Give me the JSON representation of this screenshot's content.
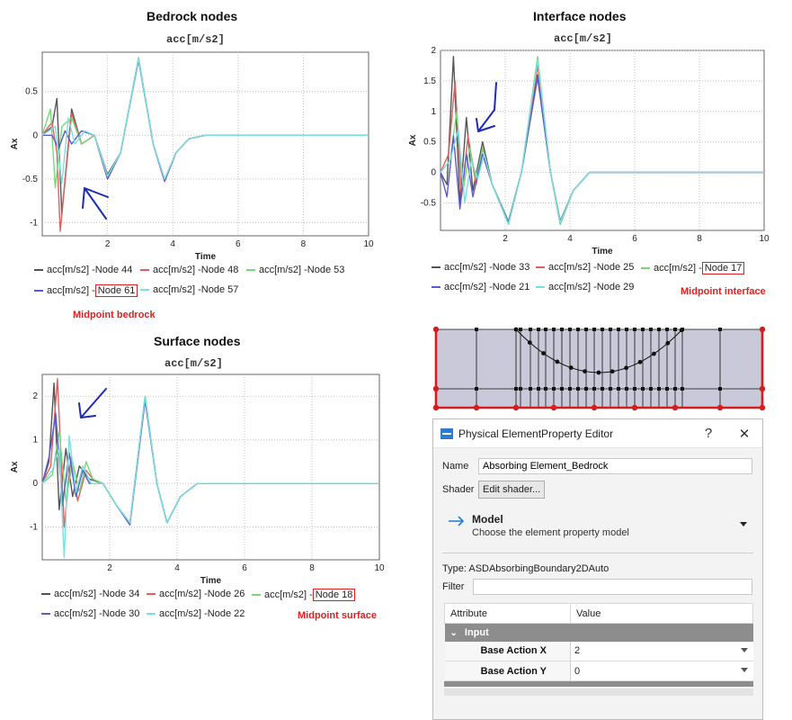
{
  "panels": {
    "bedrock": {
      "heading": "Bedrock nodes",
      "chart_title": "acc[m/s2]",
      "ylabel": "Ax",
      "xlabel": "Time",
      "xticks": [
        "2",
        "4",
        "6",
        "8",
        "10"
      ],
      "yticks": [
        "0.5",
        "0",
        "-0.5",
        "-1"
      ],
      "legend": [
        {
          "prefix": "acc[m/s2] - ",
          "node": "Node 44",
          "color": "#555555"
        },
        {
          "prefix": "acc[m/s2] - ",
          "node": "Node 48",
          "color": "#e06060"
        },
        {
          "prefix": "acc[m/s2] - ",
          "node": "Node 53",
          "color": "#7ad77a"
        },
        {
          "prefix": "acc[m/s2] - ",
          "node": "Node 61",
          "color": "#5b5bd0"
        },
        {
          "prefix": "acc[m/s2] - ",
          "node": "Node 57",
          "color": "#7be0e0"
        }
      ],
      "note": "Midpoint bedrock"
    },
    "interface": {
      "heading": "Interface nodes",
      "chart_title": "acc[m/s2]",
      "ylabel": "Ax",
      "xlabel": "Time",
      "xticks": [
        "2",
        "4",
        "6",
        "8",
        "10"
      ],
      "yticks": [
        "2",
        "1.5",
        "1",
        "0.5",
        "0",
        "-0.5"
      ],
      "legend": [
        {
          "prefix": "acc[m/s2] - ",
          "node": "Node 33",
          "color": "#555555"
        },
        {
          "prefix": "acc[m/s2] - ",
          "node": "Node 25",
          "color": "#e06060"
        },
        {
          "prefix": "acc[m/s2] - ",
          "node": "Node 17",
          "color": "#7ad77a"
        },
        {
          "prefix": "acc[m/s2] - ",
          "node": "Node 21",
          "color": "#5b5bd0"
        },
        {
          "prefix": "acc[m/s2] - ",
          "node": "Node 29",
          "color": "#7be0e0"
        }
      ],
      "note": "Midpoint interface"
    },
    "surface": {
      "heading": "Surface nodes",
      "chart_title": "acc[m/s2]",
      "ylabel": "Ax",
      "xlabel": "Time",
      "xticks": [
        "2",
        "4",
        "6",
        "8",
        "10"
      ],
      "yticks": [
        "2",
        "1",
        "0",
        "-1"
      ],
      "legend": [
        {
          "prefix": "acc[m/s2] - ",
          "node": "Node 34",
          "color": "#555555"
        },
        {
          "prefix": "acc[m/s2] - ",
          "node": "Node 26",
          "color": "#e06060"
        },
        {
          "prefix": "acc[m/s2] - ",
          "node": "Node 18",
          "color": "#7ad77a"
        },
        {
          "prefix": "acc[m/s2] - ",
          "node": "Node 30",
          "color": "#5b5bd0"
        },
        {
          "prefix": "acc[m/s2] - ",
          "node": "Node 22",
          "color": "#7be0e0"
        }
      ],
      "note": "Midpoint surface"
    }
  },
  "chart_data": [
    {
      "type": "line",
      "title": "acc[m/s2]",
      "xlabel": "Time",
      "ylabel": "Ax",
      "xlim": [
        0,
        10
      ],
      "ylim": [
        -1.15,
        0.95
      ],
      "grid": true,
      "legend_position": "below",
      "series": [
        {
          "name": "acc[m/s2] - Node 44",
          "x": [
            0,
            0.3,
            0.45,
            0.6,
            0.9,
            1.2,
            1.6,
            2.0,
            2.4,
            2.95,
            3.4,
            3.75,
            4.1,
            4.5,
            5.0,
            6,
            10
          ],
          "y": [
            0,
            0.1,
            0.42,
            -0.9,
            0.3,
            -0.1,
            0,
            -0.45,
            -0.2,
            0.88,
            -0.1,
            -0.52,
            -0.2,
            -0.04,
            0,
            0,
            0
          ]
        },
        {
          "name": "acc[m/s2] - Node 48",
          "x": [
            0,
            0.3,
            0.45,
            0.55,
            0.9,
            1.2,
            1.6,
            2.0,
            2.4,
            2.95,
            3.4,
            3.75,
            4.1,
            4.5,
            5.0,
            6,
            10
          ],
          "y": [
            0,
            0.15,
            -0.2,
            -1.1,
            0.25,
            -0.1,
            0,
            -0.5,
            -0.2,
            0.87,
            -0.1,
            -0.53,
            -0.2,
            -0.04,
            0,
            0,
            0
          ]
        },
        {
          "name": "acc[m/s2] - Node 53",
          "x": [
            0,
            0.25,
            0.4,
            0.6,
            0.9,
            1.2,
            1.6,
            2.0,
            2.4,
            2.95,
            3.4,
            3.75,
            4.1,
            4.5,
            5.0,
            6,
            10
          ],
          "y": [
            0,
            0.3,
            -0.6,
            0.1,
            0.2,
            -0.1,
            0,
            -0.48,
            -0.2,
            0.89,
            -0.1,
            -0.5,
            -0.2,
            -0.04,
            0,
            0,
            0
          ]
        },
        {
          "name": "acc[m/s2] - Node 61",
          "x": [
            0,
            0.3,
            0.5,
            0.7,
            0.9,
            1.2,
            1.6,
            2.0,
            2.4,
            2.95,
            3.4,
            3.75,
            4.1,
            4.5,
            5.0,
            6,
            10
          ],
          "y": [
            0,
            0,
            -0.15,
            0.05,
            -0.1,
            0.05,
            0,
            -0.5,
            -0.2,
            0.86,
            -0.1,
            -0.52,
            -0.2,
            -0.04,
            0,
            0,
            0
          ]
        },
        {
          "name": "acc[m/s2] - Node 57",
          "x": [
            0,
            0.4,
            0.6,
            0.8,
            1.0,
            1.3,
            1.6,
            2.0,
            2.4,
            2.95,
            3.4,
            3.75,
            4.1,
            4.5,
            5.0,
            6,
            10
          ],
          "y": [
            0,
            0.1,
            -0.55,
            0.2,
            -0.1,
            0.05,
            0,
            -0.47,
            -0.2,
            0.88,
            -0.1,
            -0.5,
            -0.2,
            -0.04,
            0,
            0,
            0
          ]
        }
      ]
    },
    {
      "type": "line",
      "title": "acc[m/s2]",
      "xlabel": "Time",
      "ylabel": "Ax",
      "xlim": [
        0,
        10
      ],
      "ylim": [
        -0.95,
        2.0
      ],
      "grid": true,
      "legend_position": "below",
      "series": [
        {
          "name": "acc[m/s2] - Node 33",
          "x": [
            0,
            0.2,
            0.4,
            0.6,
            0.8,
            1.0,
            1.3,
            1.6,
            2.1,
            2.5,
            3.0,
            3.4,
            3.7,
            4.1,
            4.6,
            5.2,
            6,
            10
          ],
          "y": [
            0,
            -0.2,
            1.9,
            -0.5,
            0.9,
            -0.3,
            0.5,
            -0.2,
            -0.8,
            0,
            1.6,
            0,
            -0.8,
            -0.3,
            0,
            0,
            0,
            0
          ]
        },
        {
          "name": "acc[m/s2] - Node 25",
          "x": [
            0,
            0.25,
            0.45,
            0.65,
            0.85,
            1.1,
            1.3,
            1.6,
            2.1,
            2.5,
            3.0,
            3.4,
            3.7,
            4.1,
            4.6,
            5.2,
            6,
            10
          ],
          "y": [
            0,
            0.3,
            1.5,
            -0.4,
            0.6,
            -0.2,
            0.4,
            -0.2,
            -0.85,
            0,
            1.75,
            0,
            -0.85,
            -0.3,
            0,
            0,
            0,
            0
          ]
        },
        {
          "name": "acc[m/s2] - Node 17",
          "x": [
            0,
            0.3,
            0.5,
            0.7,
            0.9,
            1.1,
            1.3,
            1.6,
            2.1,
            2.5,
            3.0,
            3.4,
            3.7,
            4.1,
            4.6,
            5.2,
            6,
            10
          ],
          "y": [
            0,
            0.2,
            1.0,
            -0.3,
            0.4,
            -0.1,
            0.4,
            -0.2,
            -0.8,
            0,
            1.9,
            0,
            -0.85,
            -0.3,
            0,
            0,
            0,
            0
          ]
        },
        {
          "name": "acc[m/s2] - Node 21",
          "x": [
            0,
            0.2,
            0.4,
            0.6,
            0.8,
            1.0,
            1.3,
            1.6,
            2.1,
            2.5,
            3.0,
            3.4,
            3.7,
            4.1,
            4.6,
            5.2,
            6,
            10
          ],
          "y": [
            0,
            -0.4,
            0.6,
            -0.6,
            0.3,
            -0.4,
            0.3,
            -0.2,
            -0.82,
            0,
            1.55,
            0,
            -0.8,
            -0.3,
            0,
            0,
            0,
            0
          ]
        },
        {
          "name": "acc[m/s2] - Node 29",
          "x": [
            0,
            0.3,
            0.55,
            0.75,
            0.95,
            1.15,
            1.35,
            1.6,
            2.1,
            2.5,
            3.0,
            3.4,
            3.7,
            4.1,
            4.6,
            5.2,
            6,
            10
          ],
          "y": [
            0,
            0.2,
            0.7,
            -0.5,
            0.2,
            -0.1,
            0.3,
            -0.2,
            -0.85,
            0,
            1.85,
            0,
            -0.82,
            -0.3,
            0,
            0,
            0,
            0
          ]
        }
      ]
    },
    {
      "type": "line",
      "title": "acc[m/s2]",
      "xlabel": "Time",
      "ylabel": "Ax",
      "xlim": [
        0,
        10
      ],
      "ylim": [
        -1.75,
        2.5
      ],
      "grid": true,
      "legend_position": "below",
      "series": [
        {
          "name": "acc[m/s2] - Node 34",
          "x": [
            0,
            0.2,
            0.35,
            0.5,
            0.7,
            0.9,
            1.1,
            1.4,
            1.8,
            2.2,
            2.6,
            3.05,
            3.4,
            3.7,
            4.1,
            4.6,
            5.4,
            6,
            10
          ],
          "y": [
            0,
            0.5,
            2.3,
            -0.6,
            0.8,
            -0.3,
            0.4,
            0.1,
            0,
            -0.5,
            -0.9,
            2.0,
            0,
            -0.9,
            -0.3,
            0,
            0,
            0,
            0
          ]
        },
        {
          "name": "acc[m/s2] - Node 26",
          "x": [
            0,
            0.25,
            0.45,
            0.65,
            0.85,
            1.05,
            1.3,
            1.5,
            1.8,
            2.2,
            2.6,
            3.05,
            3.4,
            3.7,
            4.1,
            4.6,
            5.4,
            6,
            10
          ],
          "y": [
            0,
            0.4,
            2.4,
            -1.0,
            0.6,
            -0.4,
            0.3,
            0.1,
            0,
            -0.5,
            -0.9,
            1.95,
            0,
            -0.9,
            -0.3,
            0,
            0,
            0,
            0
          ]
        },
        {
          "name": "acc[m/s2] - Node 18",
          "x": [
            0,
            0.3,
            0.5,
            0.7,
            0.9,
            1.1,
            1.3,
            1.5,
            1.8,
            2.2,
            2.6,
            3.05,
            3.4,
            3.7,
            4.1,
            4.6,
            5.4,
            6,
            10
          ],
          "y": [
            0,
            0.2,
            1.2,
            -0.4,
            0.5,
            -0.2,
            0.5,
            0.1,
            0,
            -0.5,
            -0.9,
            2.0,
            0,
            -0.9,
            -0.3,
            0,
            0,
            0,
            0
          ]
        },
        {
          "name": "acc[m/s2] - Node 30",
          "x": [
            0,
            0.2,
            0.4,
            0.6,
            0.8,
            1.0,
            1.2,
            1.4,
            1.8,
            2.2,
            2.6,
            3.05,
            3.4,
            3.7,
            4.1,
            4.6,
            5.4,
            6,
            10
          ],
          "y": [
            0,
            0.6,
            1.6,
            -0.5,
            0.7,
            -0.3,
            0.3,
            0,
            0,
            -0.5,
            -0.95,
            1.9,
            0,
            -0.9,
            -0.3,
            0,
            0,
            0,
            0
          ]
        },
        {
          "name": "acc[m/s2] - Node 22",
          "x": [
            0,
            0.3,
            0.5,
            0.65,
            0.8,
            1.0,
            1.2,
            1.45,
            1.8,
            2.2,
            2.6,
            3.05,
            3.4,
            3.7,
            4.1,
            4.6,
            5.4,
            6,
            10
          ],
          "y": [
            0,
            0.3,
            0.8,
            -1.7,
            1.1,
            -0.2,
            0.4,
            0,
            0,
            -0.5,
            -0.9,
            2.0,
            0,
            -0.9,
            -0.3,
            0,
            0,
            0,
            0
          ]
        }
      ]
    }
  ],
  "dialog": {
    "title": "Physical ElementProperty Editor",
    "help": "?",
    "close": "✕",
    "name_label": "Name",
    "name_value": "Absorbing Element_Bedrock",
    "shader_label": "Shader",
    "shader_button": "Edit shader...",
    "model_heading": "Model",
    "model_sub": "Choose the element property model",
    "type_text": "Type: ASDAbsorbingBoundary2DAuto",
    "filter_label": "Filter",
    "filter_value": "",
    "col_attribute": "Attribute",
    "col_value": "Value",
    "group_input": "Input",
    "props": [
      {
        "name": "Base Action X",
        "value": "2"
      },
      {
        "name": "Base Action Y",
        "value": "0"
      }
    ]
  }
}
